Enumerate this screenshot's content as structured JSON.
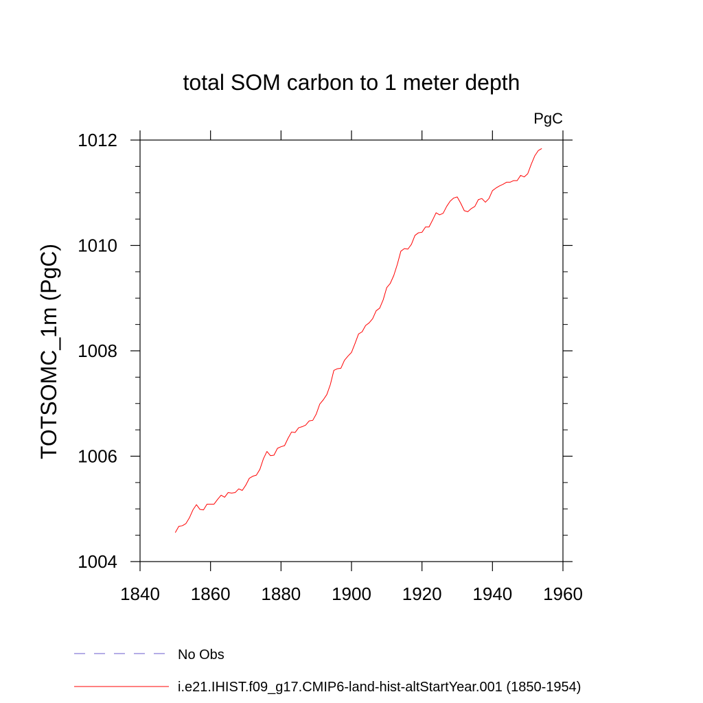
{
  "chart_data": {
    "type": "line",
    "title": "total SOM carbon to 1 meter depth",
    "units_label": "PgC",
    "ylabel": "TOTSOMC_1m  (PgC)",
    "xlabel": "",
    "xlim": [
      1840,
      1960
    ],
    "ylim": [
      1004,
      1012
    ],
    "x_ticks": [
      1840,
      1860,
      1880,
      1900,
      1920,
      1940,
      1960
    ],
    "x_tick_labels": [
      "1840",
      "1860",
      "1880",
      "1900",
      "1920",
      "1940",
      "1960"
    ],
    "y_ticks": [
      1004,
      1006,
      1008,
      1010,
      1012
    ],
    "y_tick_labels": [
      "1004",
      "1006",
      "1008",
      "1010",
      "1012"
    ],
    "grid": false,
    "legend_placement": "bottom",
    "series": [
      {
        "name": "i.e21.IHIST.f09_g17.CMIP6-land-hist-altStartYear.001 (1850-1954)",
        "color": "#ff0000",
        "style": "solid",
        "x": [
          1850,
          1851,
          1852,
          1853,
          1854,
          1855,
          1856,
          1857,
          1858,
          1859,
          1860,
          1861,
          1862,
          1863,
          1864,
          1865,
          1866,
          1867,
          1868,
          1869,
          1870,
          1871,
          1872,
          1873,
          1874,
          1875,
          1876,
          1877,
          1878,
          1879,
          1880,
          1881,
          1882,
          1883,
          1884,
          1885,
          1886,
          1887,
          1888,
          1889,
          1890,
          1891,
          1892,
          1893,
          1894,
          1895,
          1896,
          1897,
          1898,
          1899,
          1900,
          1901,
          1902,
          1903,
          1904,
          1905,
          1906,
          1907,
          1908,
          1909,
          1910,
          1911,
          1912,
          1913,
          1914,
          1915,
          1916,
          1917,
          1918,
          1919,
          1920,
          1921,
          1922,
          1923,
          1924,
          1925,
          1926,
          1927,
          1928,
          1929,
          1930,
          1931,
          1932,
          1933,
          1934,
          1935,
          1936,
          1937,
          1938,
          1939,
          1940,
          1941,
          1942,
          1943,
          1944,
          1945,
          1946,
          1947,
          1948,
          1949,
          1950,
          1951,
          1952,
          1953,
          1954
        ],
        "values": [
          1004.55,
          1004.67,
          1004.68,
          1004.72,
          1004.83,
          1004.98,
          1005.08,
          1004.99,
          1004.98,
          1005.09,
          1005.09,
          1005.09,
          1005.18,
          1005.26,
          1005.22,
          1005.31,
          1005.3,
          1005.31,
          1005.38,
          1005.35,
          1005.45,
          1005.58,
          1005.62,
          1005.64,
          1005.75,
          1005.95,
          1006.09,
          1006.01,
          1006.02,
          1006.15,
          1006.18,
          1006.2,
          1006.34,
          1006.46,
          1006.45,
          1006.54,
          1006.56,
          1006.59,
          1006.67,
          1006.68,
          1006.8,
          1006.99,
          1007.07,
          1007.17,
          1007.36,
          1007.63,
          1007.66,
          1007.67,
          1007.82,
          1007.9,
          1007.97,
          1008.14,
          1008.32,
          1008.36,
          1008.48,
          1008.53,
          1008.61,
          1008.76,
          1008.81,
          1008.97,
          1009.2,
          1009.28,
          1009.43,
          1009.64,
          1009.89,
          1009.94,
          1009.93,
          1010.02,
          1010.19,
          1010.24,
          1010.25,
          1010.35,
          1010.35,
          1010.48,
          1010.62,
          1010.58,
          1010.61,
          1010.74,
          1010.84,
          1010.9,
          1010.92,
          1010.8,
          1010.66,
          1010.64,
          1010.7,
          1010.74,
          1010.87,
          1010.89,
          1010.82,
          1010.89,
          1011.04,
          1011.09,
          1011.13,
          1011.16,
          1011.2,
          1011.2,
          1011.23,
          1011.23,
          1011.33,
          1011.3,
          1011.36,
          1011.54,
          1011.7,
          1011.8,
          1011.84
        ]
      }
    ],
    "legend": [
      {
        "label": "No Obs",
        "color": "#6a5acd",
        "style": "dashed"
      },
      {
        "label": "i.e21.IHIST.f09_g17.CMIP6-land-hist-altStartYear.001 (1850-1954)",
        "color": "#ff0000",
        "style": "solid"
      }
    ]
  }
}
